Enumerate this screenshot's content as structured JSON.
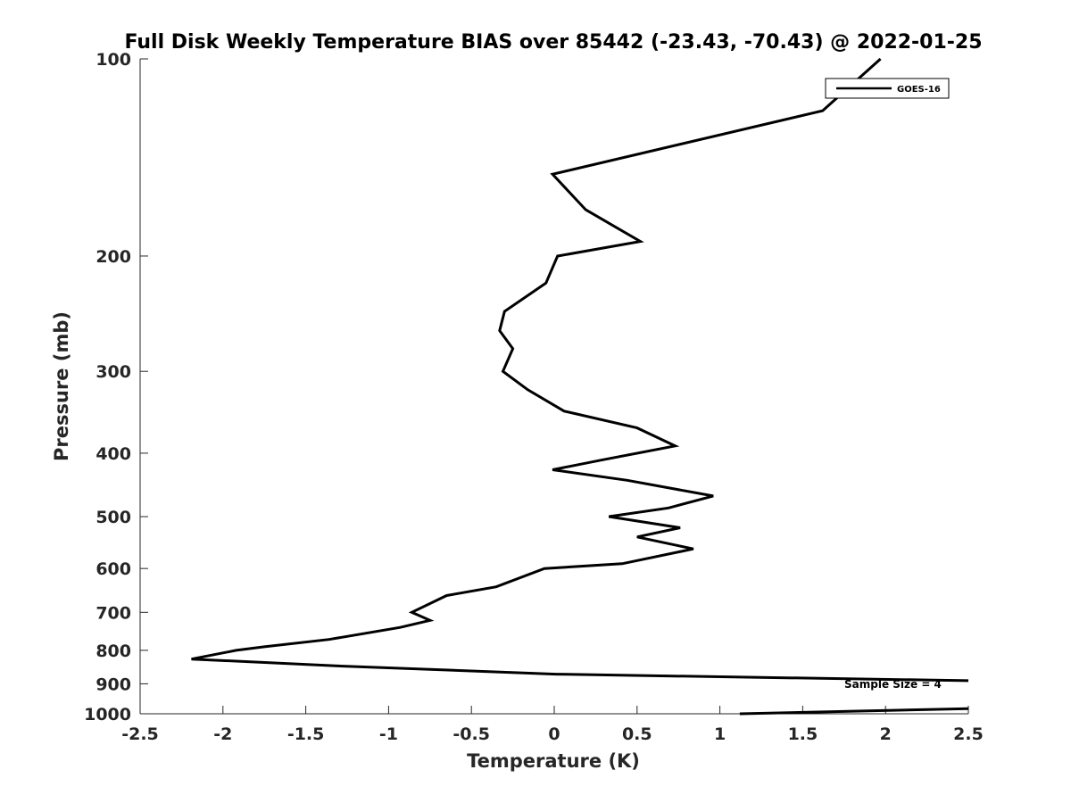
{
  "chart_data": {
    "type": "line",
    "title": "Full Disk Weekly Temperature BIAS over 85442 (-23.43, -70.43) @ 2022-01-25",
    "xlabel": "Temperature (K)",
    "ylabel": "Pressure (mb)",
    "xlim": [
      -2.5,
      2.5
    ],
    "ylim": [
      1000,
      100
    ],
    "yscale": "log",
    "y_reversed": true,
    "grid": false,
    "legend_position": "top-right",
    "x_ticks": [
      -2.5,
      -2,
      -1.5,
      -1,
      -0.5,
      0,
      0.5,
      1,
      1.5,
      2,
      2.5
    ],
    "x_tick_labels": [
      "-2.5",
      "-2",
      "-1.5",
      "-1",
      "-0.5",
      "0",
      "0.5",
      "1",
      "1.5",
      "2",
      "2.5"
    ],
    "y_ticks": [
      100,
      200,
      300,
      400,
      500,
      600,
      700,
      800,
      900,
      1000
    ],
    "y_tick_labels": [
      "100",
      "200",
      "300",
      "400",
      "500",
      "600",
      "700",
      "800",
      "900",
      "1000"
    ],
    "annotation": "Sample Size = 4",
    "series": [
      {
        "name": "GOES-16",
        "color": "#000000",
        "points": [
          [
            1.97,
            100
          ],
          [
            1.62,
            120
          ],
          [
            -0.01,
            150
          ],
          [
            0.19,
            170
          ],
          [
            0.52,
            190
          ],
          [
            0.02,
            200
          ],
          [
            -0.05,
            220
          ],
          [
            -0.3,
            243
          ],
          [
            -0.33,
            260
          ],
          [
            -0.25,
            277
          ],
          [
            -0.31,
            300
          ],
          [
            -0.16,
            320
          ],
          [
            0.06,
            345
          ],
          [
            0.5,
            366
          ],
          [
            0.73,
            390
          ],
          [
            0.28,
            410
          ],
          [
            -0.01,
            424
          ],
          [
            0.44,
            440
          ],
          [
            0.96,
            465
          ],
          [
            0.69,
            485
          ],
          [
            0.33,
            500
          ],
          [
            0.76,
            520
          ],
          [
            0.5,
            537
          ],
          [
            0.84,
            560
          ],
          [
            0.41,
            590
          ],
          [
            -0.06,
            600
          ],
          [
            -0.35,
            640
          ],
          [
            -0.65,
            660
          ],
          [
            -0.86,
            700
          ],
          [
            -0.75,
            720
          ],
          [
            -0.93,
            738
          ],
          [
            -1.36,
            770
          ],
          [
            -1.75,
            790
          ],
          [
            -1.92,
            800
          ],
          [
            -2.19,
            825
          ],
          [
            -1.32,
            845
          ],
          [
            0.01,
            870
          ],
          [
            2.5,
            890
          ]
        ]
      },
      {
        "name": "",
        "color": "#000000",
        "points": [
          [
            2.5,
            982
          ],
          [
            1.12,
            1000
          ]
        ]
      }
    ]
  }
}
